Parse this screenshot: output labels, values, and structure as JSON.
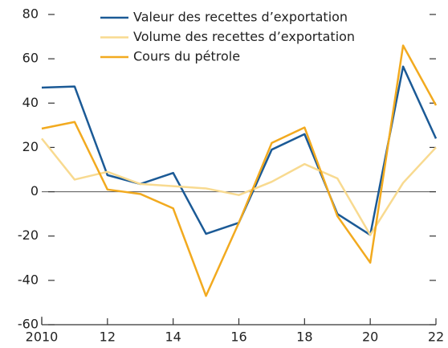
{
  "chart_data": {
    "type": "line",
    "x": [
      2010,
      2011,
      2012,
      2013,
      2014,
      2015,
      2016,
      2017,
      2018,
      2019,
      2020,
      2021,
      2022
    ],
    "series": [
      {
        "name": "Valeur des recettes d’exportation",
        "color": "#1b5a96",
        "values": [
          47,
          47.5,
          7.5,
          3.5,
          8.5,
          -19,
          -14,
          19,
          26,
          -10,
          -19.5,
          56.5,
          24
        ]
      },
      {
        "name": "Volume des recettes d’exportation",
        "color": "#f8da90",
        "values": [
          24,
          5.5,
          9,
          3.5,
          2.5,
          1.5,
          -1.5,
          4.5,
          12.5,
          6,
          -19.5,
          4,
          20
        ]
      },
      {
        "name": "Cours du pétrole",
        "color": "#f2aa1f",
        "values": [
          28.5,
          31.5,
          1,
          -1,
          -7.5,
          -47,
          -14,
          22,
          29,
          -11,
          -32,
          66,
          39
        ]
      }
    ],
    "xlim": [
      2010,
      2022
    ],
    "xticks": [
      2010,
      {
        "value": 2012,
        "label": "12"
      },
      {
        "value": 2014,
        "label": "14"
      },
      {
        "value": 2016,
        "label": "16"
      },
      {
        "value": 2018,
        "label": "18"
      },
      {
        "value": 2020,
        "label": "20"
      },
      {
        "value": 2022,
        "label": "22"
      }
    ],
    "ylim": [
      -60,
      80
    ],
    "yticks": [
      -60,
      -40,
      -20,
      0,
      20,
      40,
      60,
      80
    ],
    "legend": "top"
  }
}
